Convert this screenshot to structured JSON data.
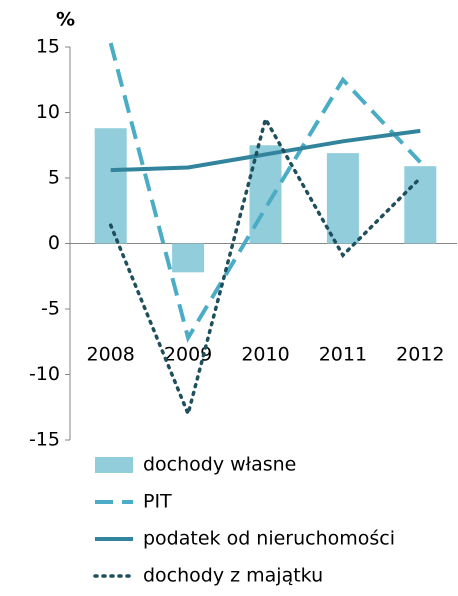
{
  "chart_data": {
    "type": "combo",
    "y_label": "%",
    "categories": [
      "2008",
      "2009",
      "2010",
      "2011",
      "2012"
    ],
    "series": [
      {
        "name": "dochody własne",
        "kind": "bar",
        "color": "#92cddc",
        "values": [
          8.8,
          -2.2,
          7.5,
          6.9,
          5.9
        ]
      },
      {
        "name": "PIT",
        "kind": "line",
        "style": "dashed",
        "color": "#4bacc6",
        "values": [
          15.3,
          -7.2,
          2.7,
          12.5,
          6.2
        ]
      },
      {
        "name": "podatek od nieruchomości",
        "kind": "line",
        "style": "solid",
        "color": "#31849b",
        "values": [
          5.6,
          5.8,
          6.8,
          7.8,
          8.6
        ]
      },
      {
        "name": "dochody z majątku",
        "kind": "line",
        "style": "dotted",
        "color": "#1f4f5c",
        "values": [
          1.4,
          -13.0,
          9.5,
          -0.9,
          5.0
        ]
      }
    ],
    "ylim": [
      -15,
      15
    ],
    "yticks": [
      -15,
      -10,
      -5,
      0,
      5,
      10,
      15
    ],
    "grid": false,
    "legend": "bottom"
  }
}
